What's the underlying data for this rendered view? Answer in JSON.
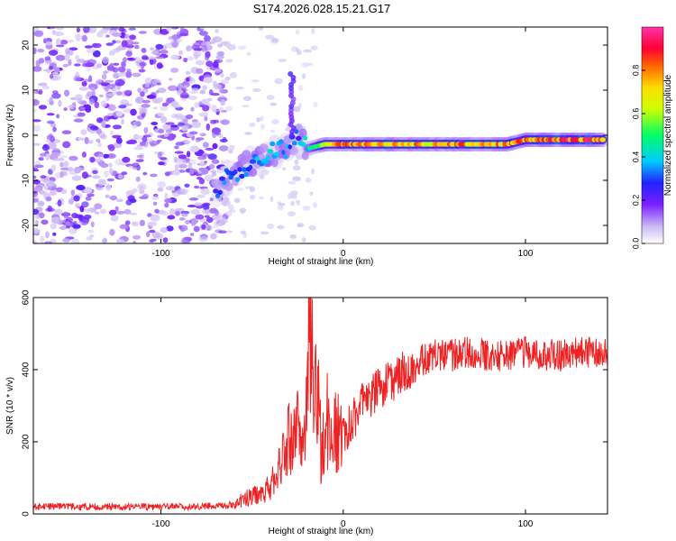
{
  "title": "S174.2026.028.15.21.G17",
  "chart_data": [
    {
      "type": "heatmap",
      "title": "S174.2026.028.15.21.G17",
      "xlabel": "Height of straight line (km)",
      "ylabel": "Frequency (Hz)",
      "xlim": [
        -170,
        145
      ],
      "ylim": [
        -24,
        24
      ],
      "x_ticks": [
        -100,
        0,
        100
      ],
      "y_ticks": [
        20,
        10,
        0,
        -10,
        -20
      ],
      "colorbar": {
        "label": "Normalized spectral amplitude",
        "range": [
          0,
          1
        ],
        "ticks": [
          "0.0",
          "0.2",
          "0.4",
          "0.6",
          "0.8"
        ]
      },
      "noise_region_x": [
        -170,
        -70
      ],
      "ridge": {
        "x": [
          -70,
          -60,
          -50,
          -40,
          -30,
          -25,
          -20,
          -10,
          0,
          20,
          40,
          60,
          80,
          90,
          100,
          110,
          120,
          130,
          143
        ],
        "frequency": [
          -12,
          -8,
          -6,
          -4,
          -3,
          0,
          -3,
          -2,
          -2,
          -2,
          -2,
          -2,
          -2,
          -2,
          -1,
          -1,
          -1,
          -1,
          -1
        ],
        "amplitude": [
          0.3,
          0.35,
          0.35,
          0.4,
          0.35,
          0.3,
          0.45,
          0.75,
          0.8,
          0.8,
          0.8,
          0.8,
          0.85,
          0.8,
          0.85,
          0.9,
          0.9,
          0.9,
          0.9
        ]
      }
    },
    {
      "type": "line",
      "xlabel": "Height of straight line (km)",
      "ylabel": "SNR (10 * v/v)",
      "xlim": [
        -170,
        145
      ],
      "ylim": [
        0,
        600
      ],
      "x_ticks": [
        -100,
        0,
        100
      ],
      "y_ticks": [
        0,
        200,
        400,
        600
      ],
      "color": "#ee2222",
      "series": [
        {
          "name": "SNR",
          "x": [
            -170,
            -150,
            -130,
            -110,
            -90,
            -70,
            -60,
            -55,
            -50,
            -45,
            -40,
            -35,
            -30,
            -25,
            -22,
            -20,
            -18,
            -16,
            -14,
            -12,
            -10,
            -5,
            0,
            5,
            10,
            15,
            20,
            30,
            40,
            50,
            60,
            70,
            80,
            90,
            100,
            110,
            120,
            130,
            143
          ],
          "y": [
            20,
            20,
            20,
            20,
            20,
            22,
            25,
            40,
            50,
            60,
            80,
            120,
            200,
            250,
            150,
            300,
            520,
            250,
            400,
            150,
            260,
            230,
            220,
            260,
            300,
            320,
            350,
            380,
            420,
            440,
            440,
            450,
            440,
            440,
            450,
            440,
            440,
            450,
            440
          ]
        }
      ]
    }
  ]
}
